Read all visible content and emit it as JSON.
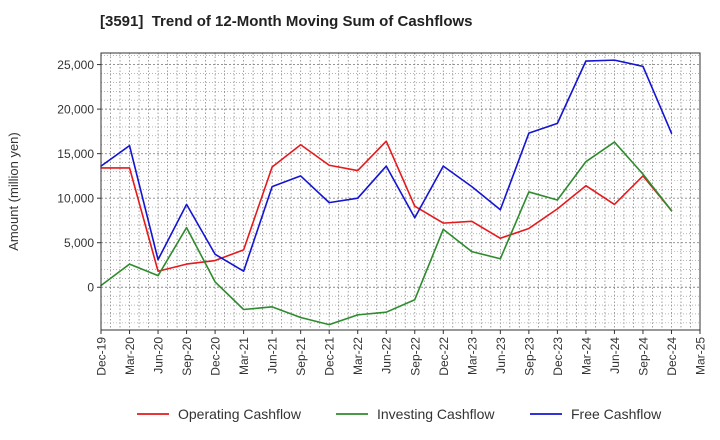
{
  "colors": {
    "operating": "#e41a1c",
    "investing": "#2e8b2e",
    "free": "#1414d2",
    "grid": "#888888",
    "axis": "#333333"
  },
  "chart_data": {
    "type": "line",
    "title": "[3591]  Trend of 12-Month Moving Sum of Cashflows",
    "ylabel": "Amount (million yen)",
    "xlabel": "",
    "ylim": [
      -4800,
      26300
    ],
    "yticks": [
      0,
      5000,
      10000,
      15000,
      20000,
      25000
    ],
    "ytick_labels": [
      "0",
      "5,000",
      "10,000",
      "15,000",
      "20,000",
      "25,000"
    ],
    "x_tick_labels": [
      "Dec-19",
      "Mar-20",
      "Jun-20",
      "Sep-20",
      "Dec-20",
      "Mar-21",
      "Jun-21",
      "Sep-21",
      "Dec-21",
      "Mar-22",
      "Jun-22",
      "Sep-22",
      "Dec-22",
      "Mar-23",
      "Jun-23",
      "Sep-23",
      "Dec-23",
      "Mar-24",
      "Jun-24",
      "Sep-24",
      "Dec-24",
      "Mar-25"
    ],
    "categories": [
      "Dec-19",
      "Mar-20",
      "Jun-20",
      "Sep-20",
      "Dec-20",
      "Mar-21",
      "Jun-21",
      "Sep-21",
      "Dec-21",
      "Mar-22",
      "Jun-22",
      "Sep-22",
      "Dec-22",
      "Mar-23",
      "Jun-23",
      "Sep-23",
      "Dec-23",
      "Mar-24",
      "Jun-24",
      "Sep-24",
      "Dec-24"
    ],
    "grid": true,
    "legend_position": "bottom",
    "series": [
      {
        "name": "Operating Cashflow",
        "color_key": "operating",
        "values": [
          13400,
          13400,
          1800,
          2600,
          3000,
          4200,
          13500,
          16000,
          13700,
          13100,
          16400,
          9100,
          7200,
          7400,
          5500,
          6600,
          8800,
          11400,
          9300,
          12500,
          8600
        ]
      },
      {
        "name": "Investing Cashflow",
        "color_key": "investing",
        "values": [
          200,
          2600,
          1300,
          6700,
          600,
          -2500,
          -2200,
          -3400,
          -4200,
          -3100,
          -2800,
          -1400,
          6500,
          4000,
          3200,
          10700,
          9800,
          14100,
          16300,
          12700,
          8600
        ]
      },
      {
        "name": "Free Cashflow",
        "color_key": "free",
        "values": [
          13600,
          15900,
          3100,
          9300,
          3700,
          1800,
          11300,
          12500,
          9500,
          10000,
          13600,
          7800,
          13600,
          11300,
          8700,
          17300,
          18400,
          25400,
          25500,
          24800,
          17300
        ]
      }
    ]
  }
}
